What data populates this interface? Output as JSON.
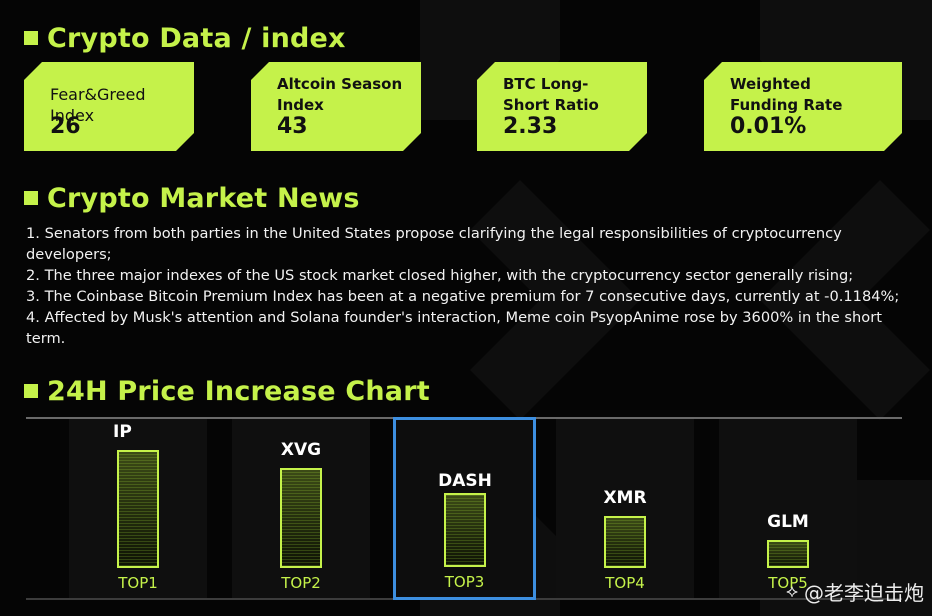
{
  "sections": {
    "data_title": "Crypto Data / index",
    "news_title": "Crypto Market News",
    "chart_title": "24H Price Increase Chart"
  },
  "cards": [
    {
      "label": "Fear&Greed Index",
      "value": "26"
    },
    {
      "label": "Altcoin Season Index",
      "value": "43"
    },
    {
      "label": "BTC Long-Short Ratio",
      "value": "2.33"
    },
    {
      "label": "Weighted Funding Rate",
      "value": "0.01%"
    }
  ],
  "news": [
    "1. Senators from both parties in the United States propose clarifying the legal responsibilities of cryptocurrency developers;",
    "2. The three major indexes of the US stock market closed higher, with the cryptocurrency sector generally rising;",
    "3. The Coinbase Bitcoin Premium Index has been at a negative premium for 7 consecutive days, currently at -0.1184%;",
    "4. Affected by Musk's attention and Solana founder's interaction, Meme coin PsyopAnime rose by 3600% in the short term."
  ],
  "chart_data": {
    "type": "bar",
    "categories": [
      "IP",
      "XVG",
      "DASH",
      "XMR",
      "GLM"
    ],
    "ranks": [
      "TOP1",
      "TOP2",
      "TOP3",
      "TOP4",
      "TOP5"
    ],
    "values": [
      100,
      85,
      63,
      44,
      24
    ],
    "highlighted_index": 2,
    "title": "",
    "xlabel": "",
    "ylabel": ""
  },
  "colors": {
    "accent": "#c5f24a",
    "highlight": "#3d8fe0",
    "background": "#050505"
  },
  "watermark": {
    "icon": "diamond-logo-icon",
    "text": "@老李迫击炮"
  }
}
